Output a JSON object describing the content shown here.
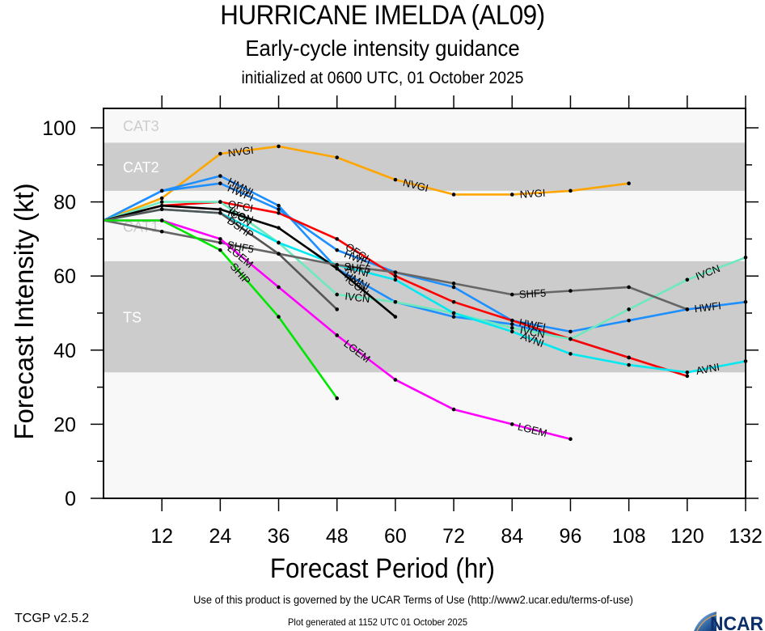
{
  "header": {
    "title": "HURRICANE IMELDA (AL09)",
    "subtitle": "Early-cycle intensity guidance",
    "initialized": "initialized at 0600 UTC, 01 October 2025"
  },
  "footer": {
    "version": "TCGP v2.5.2",
    "terms": "Use of this product is governed by the UCAR Terms of Use (http://www2.ucar.edu/terms-of-use)",
    "generated": "Plot generated at 1152 UTC   01 October 2025",
    "logo_text": "NCAR"
  },
  "chart_data": {
    "type": "line",
    "title": "HURRICANE IMELDA (AL09)",
    "subtitle": "Early-cycle intensity guidance",
    "xlabel": "Forecast Period (hr)",
    "ylabel": "Forecast Intensity (kt)",
    "xlim": [
      0,
      132
    ],
    "ylim": [
      0,
      100
    ],
    "xticks": [
      12,
      24,
      36,
      48,
      60,
      72,
      84,
      96,
      108,
      120,
      132
    ],
    "yticks": [
      0,
      20,
      40,
      60,
      80,
      100
    ],
    "yminor_step": 10,
    "grid": false,
    "bands": [
      {
        "label": "TS",
        "from": 34,
        "to": 64,
        "color": "#cccccc",
        "label_color": "#ffffff"
      },
      {
        "label": "CAT1",
        "from": 64,
        "to": 83,
        "color": "#f8f8f8",
        "label_color": "#cccccc"
      },
      {
        "label": "CAT2",
        "from": 83,
        "to": 96,
        "color": "#cccccc",
        "label_color": "#ffffff"
      },
      {
        "label": "CAT3",
        "from": 96,
        "to": 100,
        "color": "#f8f8f8",
        "label_color": "#cccccc"
      }
    ],
    "below_band_color": "#f8f8f8",
    "series": [
      {
        "name": "NVGI",
        "color": "#ffa500",
        "x": [
          0,
          12,
          24,
          36,
          48,
          60,
          72,
          84,
          96,
          108
        ],
        "y": [
          75,
          81,
          93,
          95,
          92,
          86,
          82,
          82,
          83,
          85
        ],
        "labels_at": [
          24,
          60,
          84
        ]
      },
      {
        "name": "HMNI",
        "color": "#1e8fff",
        "x": [
          0,
          12,
          24,
          36,
          48,
          60,
          72,
          84,
          96,
          108
        ],
        "y": [
          75,
          83,
          87,
          79,
          62,
          53,
          49,
          47,
          43,
          38
        ],
        "labels_at": [
          24,
          48
        ]
      },
      {
        "name": "HWFI",
        "color": "#1e8fff",
        "x": [
          0,
          12,
          24,
          36,
          48,
          60,
          72,
          84,
          96,
          108,
          120,
          132
        ],
        "y": [
          75,
          83,
          85,
          78,
          67,
          61,
          57,
          48,
          45,
          48,
          51,
          53
        ],
        "labels_at": [
          24,
          48,
          84,
          120
        ]
      },
      {
        "name": "OFCI",
        "color": "#ff0000",
        "x": [
          0,
          12,
          24,
          36,
          48,
          60,
          72,
          84,
          96,
          108,
          120
        ],
        "y": [
          75,
          79,
          80,
          77,
          70,
          60,
          53,
          48,
          43,
          38,
          33
        ],
        "labels_at": [
          24,
          48
        ]
      },
      {
        "name": "IVCN",
        "color": "#6de8bf",
        "x": [
          0,
          12,
          24,
          36,
          48,
          60,
          72,
          84,
          96,
          108,
          120,
          132
        ],
        "y": [
          75,
          80,
          80,
          69,
          55,
          53,
          50,
          46,
          43,
          51,
          59,
          65
        ],
        "labels_at": [
          24,
          48,
          84,
          120
        ]
      },
      {
        "name": "AVNI",
        "color": "#00e8f0",
        "x": [
          0,
          12,
          24,
          36,
          48,
          60,
          72,
          84,
          96,
          108,
          120,
          132
        ],
        "y": [
          75,
          78,
          77,
          69,
          63,
          59,
          50,
          45,
          39,
          36,
          34,
          37
        ],
        "labels_at": [
          48,
          84,
          120
        ]
      },
      {
        "name": "ICON",
        "color": "#000000",
        "x": [
          0,
          12,
          24,
          36,
          48,
          60
        ],
        "y": [
          75,
          79,
          78,
          73,
          62,
          49
        ],
        "labels_at": [
          24,
          48
        ]
      },
      {
        "name": "DSHP",
        "color": "#555555",
        "x": [
          0,
          12,
          24,
          36,
          48
        ],
        "y": [
          75,
          78,
          77,
          66,
          51
        ],
        "labels_at": [
          24
        ]
      },
      {
        "name": "SHF5",
        "color": "#666666",
        "x": [
          0,
          12,
          24,
          36,
          48,
          60,
          72,
          84,
          96,
          108,
          120
        ],
        "y": [
          75,
          72,
          69,
          66,
          63,
          61,
          58,
          55,
          56,
          57,
          51
        ],
        "labels_at": [
          24,
          48,
          84
        ]
      },
      {
        "name": "LGEM",
        "color": "#ff00ff",
        "x": [
          0,
          12,
          24,
          36,
          48,
          60,
          72,
          84,
          96
        ],
        "y": [
          75,
          75,
          70,
          57,
          44,
          32,
          24,
          20,
          16
        ],
        "labels_at": [
          24,
          48,
          84
        ]
      },
      {
        "name": "SHIP",
        "color": "#00e600",
        "x": [
          0,
          12,
          24,
          36,
          48
        ],
        "y": [
          75,
          75,
          67,
          49,
          27
        ],
        "labels_at": [
          24
        ]
      }
    ]
  }
}
